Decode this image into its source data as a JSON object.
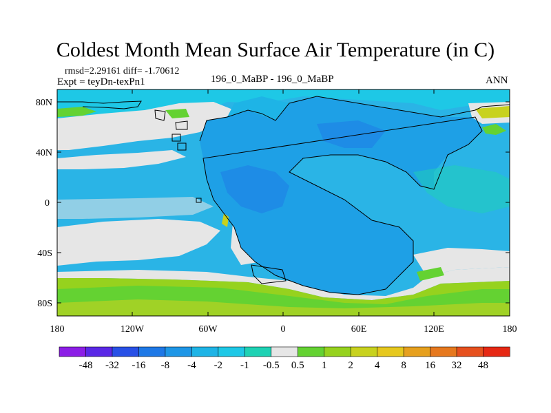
{
  "title": "Coldest Month Mean Surface Air Temperature (in C)",
  "stats": {
    "rmsd_label": "rmsd=",
    "rmsd": "2.29161",
    "diff_label": "diff=",
    "diff": "-1.70612"
  },
  "expt": "Expt = teyDn-texPn1",
  "center_label": "196_0_MaBP - 196_0_MaBP",
  "season": "ANN",
  "lat_ticks": [
    "80N",
    "40N",
    "0",
    "40S",
    "80S"
  ],
  "lon_ticks": [
    "180",
    "120W",
    "60W",
    "0",
    "60E",
    "120E",
    "180"
  ],
  "colorbar": {
    "labels": [
      "-48",
      "-32",
      "-16",
      "-8",
      "-4",
      "-2",
      "-1",
      "-0.5",
      "0.5",
      "1",
      "2",
      "4",
      "8",
      "16",
      "32",
      "48"
    ],
    "colors": [
      "#8c1ee6",
      "#5a28e6",
      "#2850e6",
      "#1e78e6",
      "#1e96e6",
      "#1eb4e6",
      "#1ec8e6",
      "#1ed2b4",
      "#e6e6e6",
      "#64d232",
      "#96d21e",
      "#c8d21e",
      "#e6c81e",
      "#e6a01e",
      "#e6781e",
      "#e6501e",
      "#e62814"
    ]
  },
  "map_colors": {
    "land_light": "#2ab4e6",
    "land_mid": "#1e96e6",
    "ocean_blue": "#28b4e6",
    "neutral": "#e6e6e6",
    "green": "#64d232",
    "yellow": "#c8d21e",
    "teal": "#1ed2b4"
  }
}
